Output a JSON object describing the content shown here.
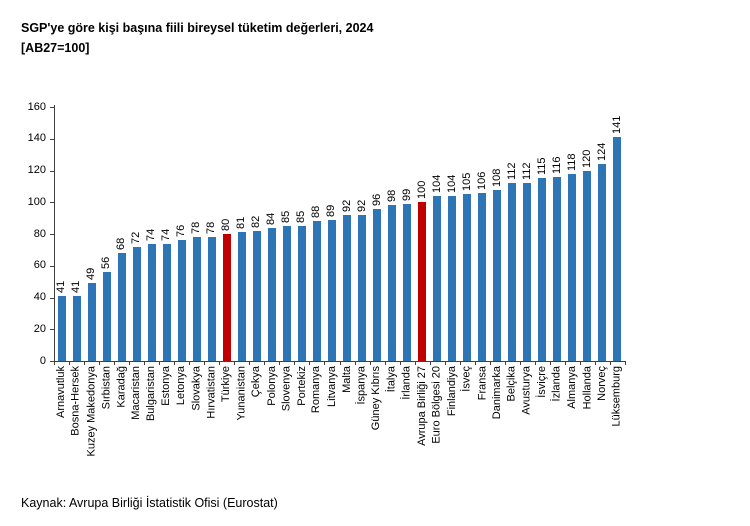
{
  "title": {
    "line1": "SGP'ye göre kişi başına fiili bireysel tüketim değerleri, 2024",
    "line2": "[AB27=100]"
  },
  "source": "Kaynak: Avrupa Birliği İstatistik Ofisi (Eurostat)",
  "colors": {
    "bar": "#2E75B6",
    "highlight": "#C00000",
    "axis": "#404040",
    "text": "#000000",
    "background": "#FFFFFF"
  },
  "chart_data": {
    "type": "bar",
    "title": "SGP'ye göre kişi başına fiili bireysel tüketim değerleri, 2024 [AB27=100]",
    "xlabel": "",
    "ylabel": "",
    "ylim": [
      0,
      160
    ],
    "yticks": [
      0,
      20,
      40,
      60,
      80,
      100,
      120,
      140,
      160
    ],
    "grid": false,
    "legend": null,
    "value_labels": "rotated-above-bars",
    "category_labels": "rotated-vertical",
    "bar_color": "#2E75B6",
    "highlight_color": "#C00000",
    "highlighted": [
      "Türkiye",
      "Avrupa Birliği 27"
    ],
    "categories": [
      "Arnavutluk",
      "Bosna-Hersek",
      "Kuzey Makedonya",
      "Sırbistan",
      "Karadağ",
      "Macaristan",
      "Bulgaristan",
      "Estonya",
      "Letonya",
      "Slovakya",
      "Hırvatistan",
      "Türkiye",
      "Yunanistan",
      "Çekya",
      "Polonya",
      "Slovenya",
      "Portekiz",
      "Romanya",
      "Litvanya",
      "Malta",
      "İspanya",
      "Güney Kıbrıs",
      "İtalya",
      "İrlanda",
      "Avrupa Birliği 27",
      "Euro Bölgesi 20",
      "Finlandiya",
      "İsveç",
      "Fransa",
      "Danimarka",
      "Belçika",
      "Avusturya",
      "İsviçre",
      "İzlanda",
      "Almanya",
      "Hollanda",
      "Norveç",
      "Lüksemburg"
    ],
    "values": [
      41,
      41,
      49,
      56,
      68,
      72,
      74,
      74,
      76,
      78,
      78,
      80,
      81,
      82,
      84,
      85,
      85,
      88,
      89,
      92,
      92,
      96,
      98,
      99,
      100,
      104,
      104,
      105,
      106,
      108,
      112,
      112,
      115,
      116,
      118,
      120,
      124,
      141
    ]
  }
}
